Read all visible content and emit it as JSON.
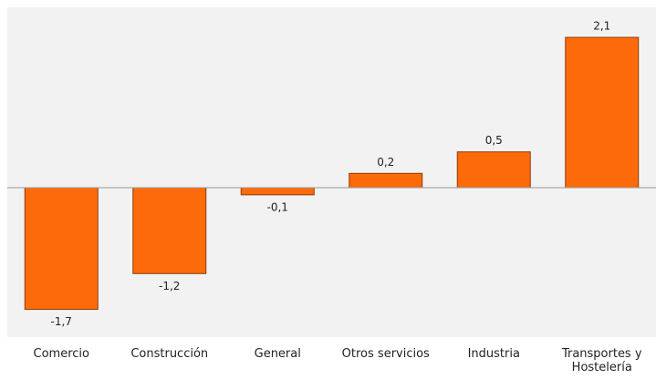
{
  "chart_data": {
    "type": "bar",
    "categories": [
      "Comercio",
      "Construcción",
      "General",
      "Otros servicios",
      "Industria",
      "Transportes y Hostelería"
    ],
    "values": [
      -1.7,
      -1.2,
      -0.1,
      0.2,
      0.5,
      2.1
    ],
    "value_labels": [
      "-1,7",
      "-1,2",
      "-0,1",
      "0,2",
      "0,5",
      "2,1"
    ],
    "color": "#fd6a0a"
  }
}
